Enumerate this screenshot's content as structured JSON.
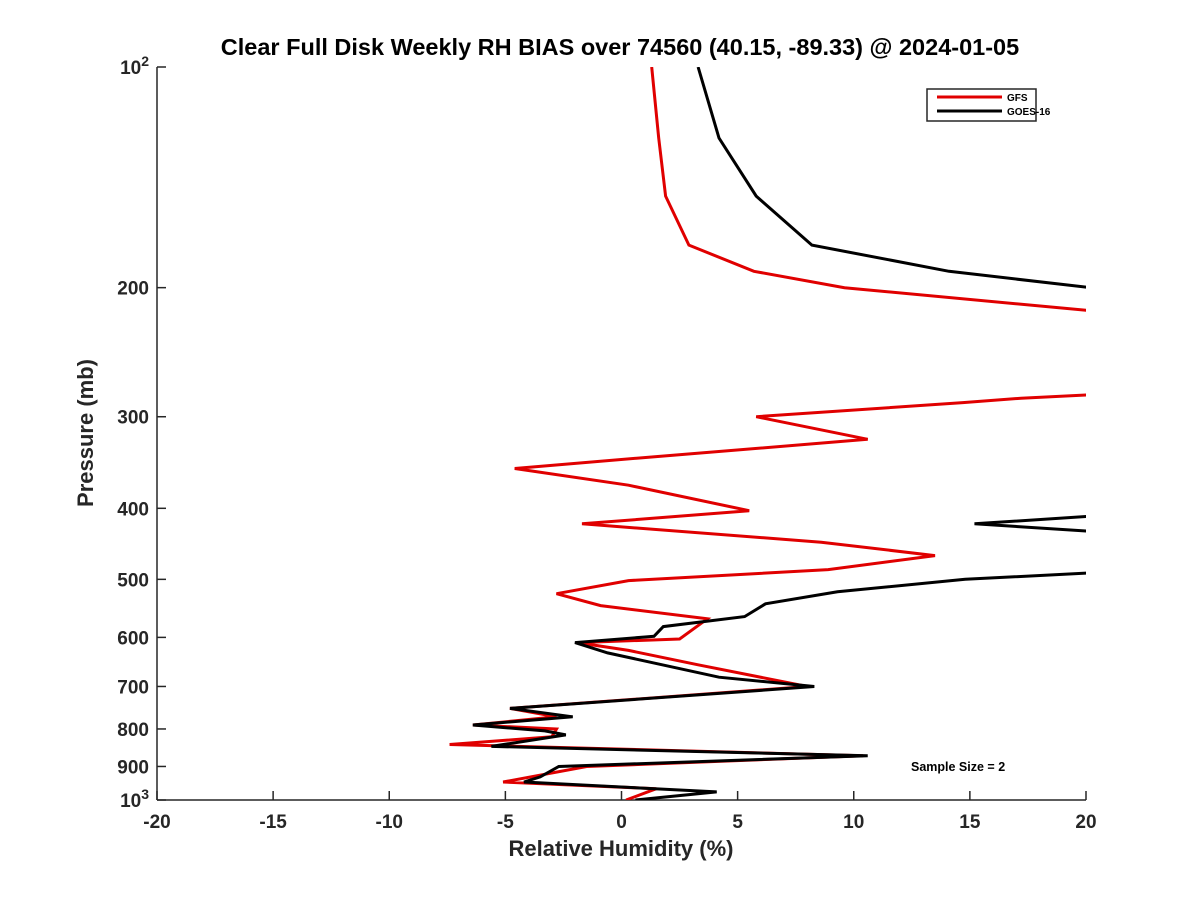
{
  "chart_data": {
    "type": "line",
    "title": "Clear Full Disk Weekly RH BIAS over 74560 (40.15, -89.33) @ 2024-01-05",
    "xlabel": "Relative Humidity (%)",
    "ylabel": "Pressure (mb)",
    "xlim": [
      -20,
      20
    ],
    "ylim": [
      1000,
      100
    ],
    "y_scale": "log",
    "x_ticks": [
      "-20",
      "-15",
      "-10",
      "-5",
      "0",
      "5",
      "10",
      "15",
      "20"
    ],
    "y_ticks": [
      {
        "value": 100,
        "base": "10",
        "exp": "2"
      },
      {
        "value": 200,
        "label": "200"
      },
      {
        "value": 300,
        "label": "300"
      },
      {
        "value": 400,
        "label": "400"
      },
      {
        "value": 500,
        "label": "500"
      },
      {
        "value": 600,
        "label": "600"
      },
      {
        "value": 700,
        "label": "700"
      },
      {
        "value": 800,
        "label": "800"
      },
      {
        "value": 900,
        "label": "900"
      },
      {
        "value": 1000,
        "base": "10",
        "exp": "3"
      }
    ],
    "grid": false,
    "legend_position": "top-right",
    "annotation": "Sample Size = 2",
    "series": [
      {
        "name": "GFS",
        "color": "#e00000",
        "points": [
          [
            1.3,
            100
          ],
          [
            1.6,
            125
          ],
          [
            1.9,
            150
          ],
          [
            2.9,
            175
          ],
          [
            5.7,
            190
          ],
          [
            9.6,
            200
          ],
          [
            20.2,
            215
          ],
          null,
          [
            20.2,
            280
          ],
          [
            17.2,
            283
          ],
          [
            14.7,
            287
          ],
          [
            5.8,
            300
          ],
          [
            10.6,
            322
          ],
          [
            1.5,
            340
          ],
          [
            -4.6,
            353
          ],
          [
            0.3,
            372
          ],
          [
            5.5,
            403
          ],
          [
            -1.7,
            420
          ],
          [
            8.6,
            445
          ],
          [
            13.5,
            464
          ],
          [
            8.9,
            485
          ],
          [
            0.3,
            502
          ],
          [
            -2.8,
            523
          ],
          [
            -0.9,
            543
          ],
          [
            3.7,
            566
          ],
          [
            2.5,
            603
          ],
          [
            -1.9,
            610
          ],
          [
            0.3,
            625
          ],
          [
            3.3,
            654
          ],
          [
            8.0,
            700
          ],
          [
            -4.8,
            750
          ],
          [
            -2.8,
            770
          ],
          [
            -6.4,
            790
          ],
          [
            -2.8,
            800
          ],
          [
            -3.0,
            820
          ],
          [
            -7.4,
            840
          ],
          [
            10.4,
            870
          ],
          [
            -1.5,
            900
          ],
          [
            -5.1,
            945
          ],
          [
            1.5,
            965
          ],
          [
            0.2,
            1000
          ]
        ]
      },
      {
        "name": "GOES-16",
        "color": "#000000",
        "points": [
          [
            3.3,
            100
          ],
          [
            4.2,
            125
          ],
          [
            5.8,
            150
          ],
          [
            8.2,
            175
          ],
          [
            14.1,
            190
          ],
          [
            20.2,
            200
          ],
          null,
          [
            20.2,
            410
          ],
          [
            15.2,
            420
          ],
          [
            20.2,
            430
          ],
          null,
          [
            20.2,
            490
          ],
          [
            14.8,
            500
          ],
          [
            9.3,
            520
          ],
          [
            6.2,
            540
          ],
          [
            5.3,
            562
          ],
          [
            1.8,
            580
          ],
          [
            1.4,
            598
          ],
          [
            -2.0,
            610
          ],
          [
            -0.6,
            630
          ],
          [
            4.2,
            680
          ],
          [
            8.3,
            700
          ],
          [
            -4.8,
            750
          ],
          [
            -2.1,
            770
          ],
          [
            -6.4,
            790
          ],
          [
            -3.3,
            805
          ],
          [
            -2.4,
            815
          ],
          [
            -5.6,
            845
          ],
          [
            10.6,
            870
          ],
          [
            -2.7,
            900
          ],
          [
            -3.5,
            930
          ],
          [
            -4.2,
            945
          ],
          [
            4.1,
            975
          ],
          [
            0.6,
            1000
          ]
        ]
      }
    ]
  }
}
